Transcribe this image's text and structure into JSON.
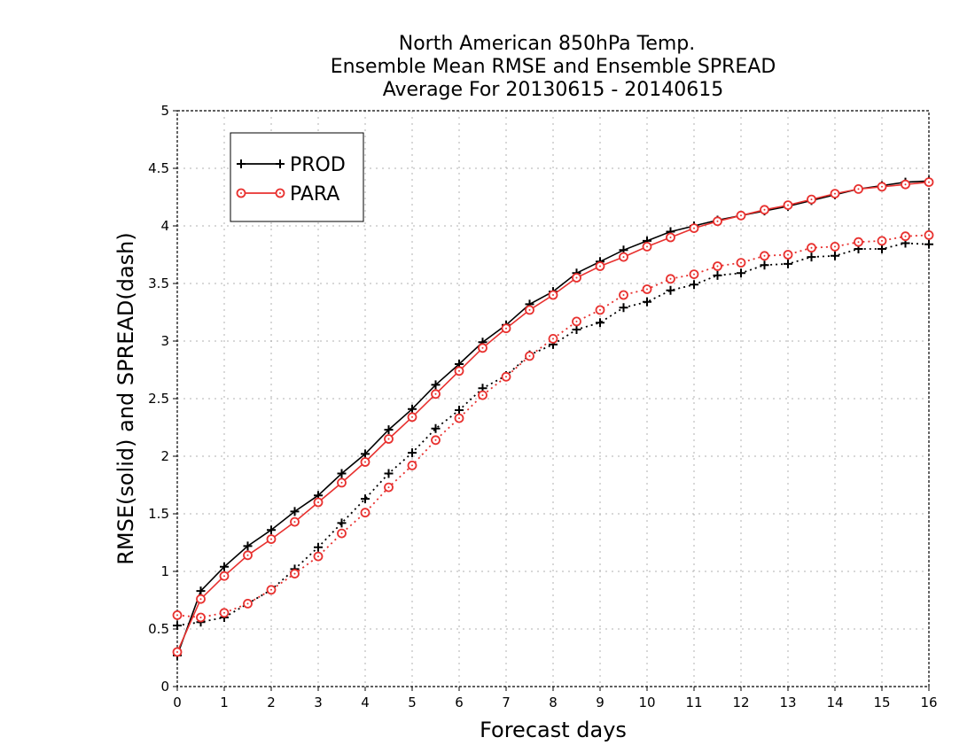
{
  "chart_data": {
    "type": "line",
    "title": [
      "North American 850hPa Temp.",
      "Ensemble Mean RMSE and Ensemble SPREAD",
      "Average For 20130615 - 20140615"
    ],
    "xlabel": "Forecast days",
    "ylabel": "RMSE(solid) and SPREAD(dash)",
    "xlim": [
      0,
      16
    ],
    "ylim": [
      0,
      5
    ],
    "x_ticks": [
      0,
      1,
      2,
      3,
      4,
      5,
      6,
      7,
      8,
      9,
      10,
      11,
      12,
      13,
      14,
      15,
      16
    ],
    "y_ticks": [
      0,
      0.5,
      1,
      1.5,
      2,
      2.5,
      3,
      3.5,
      4,
      4.5,
      5
    ],
    "grid": true,
    "legend_position": "top-left",
    "x": [
      0,
      0.5,
      1,
      1.5,
      2,
      2.5,
      3,
      3.5,
      4,
      4.5,
      5,
      5.5,
      6,
      6.5,
      7,
      7.5,
      8,
      8.5,
      9,
      9.5,
      10,
      10.5,
      11,
      11.5,
      12,
      12.5,
      13,
      13.5,
      14,
      14.5,
      15,
      15.5,
      16
    ],
    "series": [
      {
        "name": "PROD",
        "metric": "RMSE",
        "style": "solid",
        "marker": "plus",
        "color": "#000000",
        "values": [
          0.27,
          0.83,
          1.04,
          1.22,
          1.36,
          1.52,
          1.66,
          1.85,
          2.02,
          2.23,
          2.41,
          2.62,
          2.8,
          2.99,
          3.14,
          3.32,
          3.43,
          3.59,
          3.69,
          3.79,
          3.87,
          3.95,
          4.0,
          4.05,
          4.09,
          4.13,
          4.17,
          4.22,
          4.27,
          4.32,
          4.35,
          4.38,
          4.39
        ]
      },
      {
        "name": "PARA",
        "metric": "RMSE",
        "style": "solid",
        "marker": "circle",
        "color": "#e8312f",
        "values": [
          0.3,
          0.76,
          0.96,
          1.14,
          1.28,
          1.43,
          1.6,
          1.77,
          1.95,
          2.15,
          2.34,
          2.54,
          2.74,
          2.94,
          3.11,
          3.27,
          3.4,
          3.55,
          3.65,
          3.73,
          3.82,
          3.9,
          3.98,
          4.04,
          4.09,
          4.14,
          4.18,
          4.23,
          4.28,
          4.32,
          4.34,
          4.36,
          4.38
        ]
      },
      {
        "name": "PROD",
        "metric": "SPREAD",
        "style": "dash",
        "marker": "plus",
        "color": "#000000",
        "values": [
          0.53,
          0.56,
          0.6,
          0.72,
          0.84,
          1.02,
          1.21,
          1.42,
          1.63,
          1.85,
          2.03,
          2.24,
          2.4,
          2.59,
          2.7,
          2.88,
          2.97,
          3.1,
          3.16,
          3.29,
          3.34,
          3.44,
          3.49,
          3.57,
          3.59,
          3.66,
          3.67,
          3.73,
          3.74,
          3.8,
          3.8,
          3.85,
          3.84
        ]
      },
      {
        "name": "PARA",
        "metric": "SPREAD",
        "style": "dash",
        "marker": "circle",
        "color": "#e8312f",
        "values": [
          0.62,
          0.6,
          0.64,
          0.72,
          0.84,
          0.98,
          1.13,
          1.33,
          1.51,
          1.73,
          1.92,
          2.14,
          2.33,
          2.53,
          2.69,
          2.87,
          3.02,
          3.17,
          3.27,
          3.4,
          3.45,
          3.54,
          3.58,
          3.65,
          3.68,
          3.74,
          3.75,
          3.81,
          3.82,
          3.86,
          3.87,
          3.91,
          3.92
        ]
      }
    ],
    "legend": [
      {
        "label": "PROD",
        "marker": "plus",
        "color": "#000000"
      },
      {
        "label": "PARA",
        "marker": "circle",
        "color": "#e8312f"
      }
    ]
  }
}
